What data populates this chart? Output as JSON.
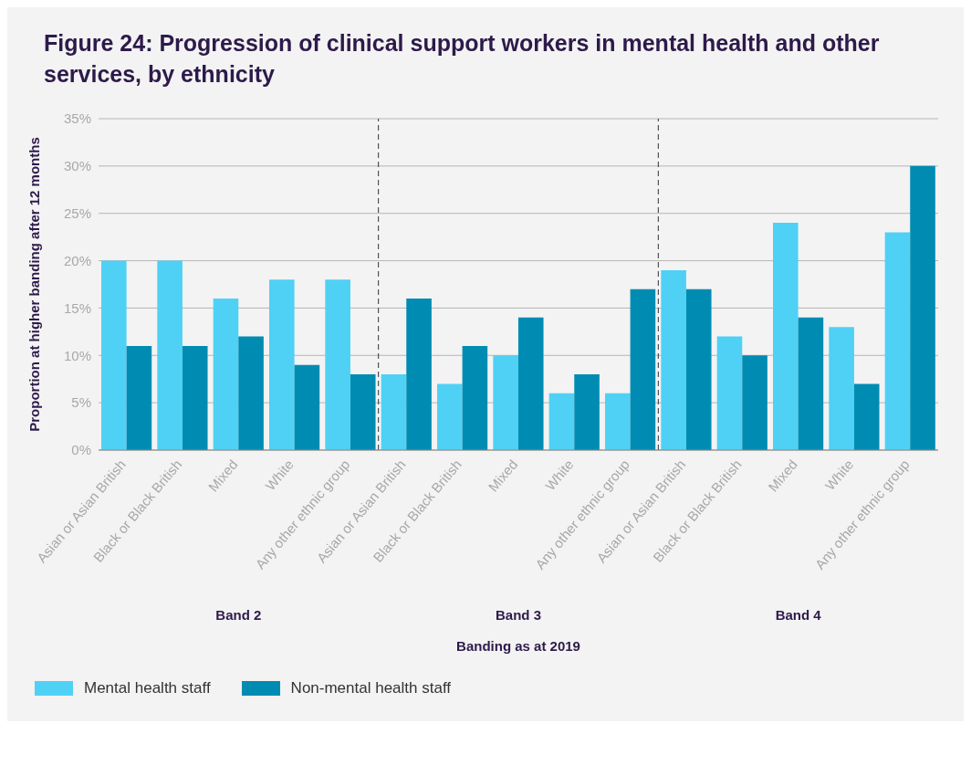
{
  "chart_data": {
    "type": "bar",
    "title": "Figure 24: Progression of clinical support workers in mental health and other services, by ethnicity",
    "xlabel": "Banding as at 2019",
    "ylabel": "Proportion at higher banding after 12 months",
    "categories": [
      "Asian or Asian British",
      "Black or Black British",
      "Mixed",
      "White",
      "Any other ethnic group",
      "Asian or Asian British",
      "Black or Black British",
      "Mixed",
      "White",
      "Any other ethnic group",
      "Asian or Asian British",
      "Black or Black British",
      "Mixed",
      "White",
      "Any other ethnic group"
    ],
    "series": [
      {
        "name": "Mental health staff",
        "color": "#4fd1f5",
        "values": [
          20,
          20,
          16,
          18,
          18,
          8,
          7,
          10,
          6,
          6,
          19,
          12,
          24,
          13,
          23
        ]
      },
      {
        "name": "Non-mental health staff",
        "color": "#008cb2",
        "values": [
          11,
          11,
          12,
          9,
          8,
          16,
          11,
          14,
          8,
          17,
          17,
          10,
          14,
          7,
          30
        ]
      }
    ],
    "ylim": [
      0,
      35
    ],
    "yticks": [
      {
        "value": 0,
        "label": "0%"
      },
      {
        "value": 5,
        "label": "5%"
      },
      {
        "value": 10,
        "label": "10%"
      },
      {
        "value": 15,
        "label": "15%"
      },
      {
        "value": 20,
        "label": "20%"
      },
      {
        "value": 25,
        "label": "25%"
      },
      {
        "value": 30,
        "label": "30%"
      },
      {
        "value": 35,
        "label": "35%"
      }
    ],
    "grid": "y",
    "legend": "bottom left",
    "annotations": [
      "Band 2",
      "Band 3",
      "Band 4"
    ]
  }
}
